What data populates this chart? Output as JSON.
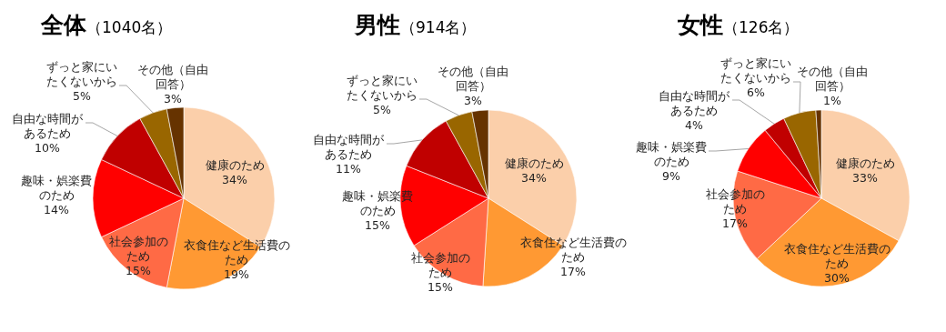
{
  "chart_data": [
    {
      "type": "pie",
      "title": "全体（1040名）",
      "categories": [
        "健康のため",
        "衣食住など生活費のため",
        "社会参加のため",
        "趣味・娯楽費のため",
        "自由な時間があるため",
        "ずっと家にいたくないから",
        "その他（自由回答）"
      ],
      "values": [
        34,
        19,
        15,
        14,
        10,
        5,
        3
      ],
      "value_labels": [
        "34%",
        "19%",
        "15%",
        "14%",
        "10%",
        "5%",
        "3%"
      ],
      "colors": [
        "#fbcfaa",
        "#ff9933",
        "#ff6a45",
        "#ff0000",
        "#c00000",
        "#996600",
        "#663300"
      ]
    },
    {
      "type": "pie",
      "title": "男性（914名）",
      "categories": [
        "健康のため",
        "衣食住など生活費のため",
        "社会参加のため",
        "趣味・娯楽費のため",
        "自由な時間があるため",
        "ずっと家にいたくないから",
        "その他（自由回答）"
      ],
      "values": [
        34,
        17,
        15,
        15,
        11,
        5,
        3
      ],
      "value_labels": [
        "34%",
        "17%",
        "15%",
        "15%",
        "11%",
        "5%",
        "3%"
      ],
      "colors": [
        "#fbcfaa",
        "#ff9933",
        "#ff6a45",
        "#ff0000",
        "#c00000",
        "#996600",
        "#663300"
      ]
    },
    {
      "type": "pie",
      "title": "女性（126名）",
      "categories": [
        "健康のため",
        "衣食住など生活費のため",
        "社会参加のため",
        "趣味・娯楽費のため",
        "自由な時間があるため",
        "ずっと家にいたくないから",
        "その他（自由回答）"
      ],
      "values": [
        33,
        30,
        17,
        9,
        4,
        6,
        1
      ],
      "value_labels": [
        "33%",
        "30%",
        "17%",
        "9%",
        "4%",
        "6%",
        "1%"
      ],
      "colors": [
        "#fbcfaa",
        "#ff9933",
        "#ff6a45",
        "#ff0000",
        "#c00000",
        "#996600",
        "#663300"
      ]
    }
  ]
}
